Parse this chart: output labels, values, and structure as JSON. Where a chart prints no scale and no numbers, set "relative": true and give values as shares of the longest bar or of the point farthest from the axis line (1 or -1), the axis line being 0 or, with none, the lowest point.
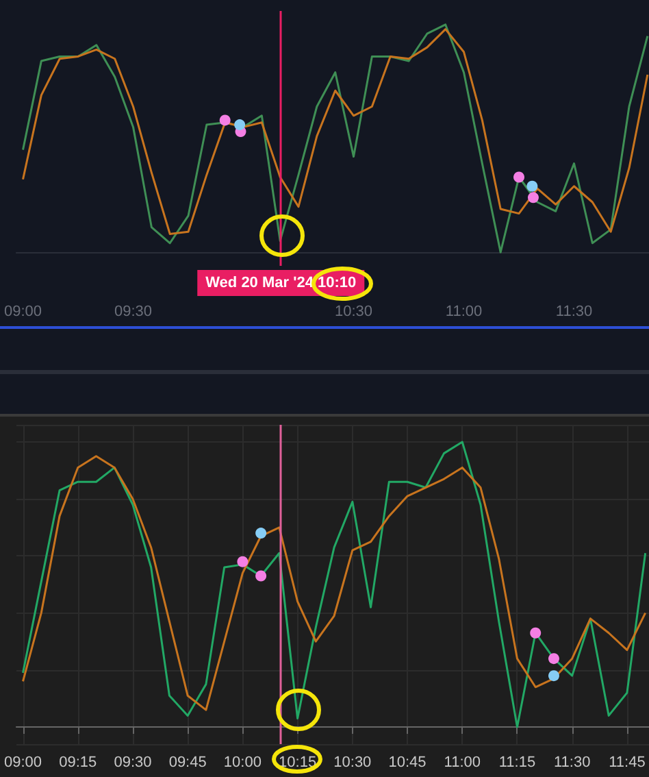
{
  "chart_data": [
    {
      "type": "line",
      "relative": true,
      "tick_labels": "x",
      "grid": false,
      "marker": "none",
      "line_style": "solid",
      "xlim": [
        8.97,
        11.84
      ],
      "xticks": [
        {
          "value": 9,
          "label": "09:00"
        },
        {
          "value": 9.5,
          "label": "09:30"
        },
        {
          "value": 10.5,
          "label": "10:30"
        },
        {
          "value": 11,
          "label": "11:00"
        },
        {
          "value": 11.5,
          "label": "11:30"
        }
      ],
      "x": [
        9,
        9.0833,
        9.1667,
        9.25,
        9.3333,
        9.4167,
        9.5,
        9.5833,
        9.6667,
        9.75,
        9.8333,
        9.9167,
        10,
        10.0833,
        10.1667,
        10.25,
        10.3333,
        10.4167,
        10.5,
        10.5833,
        10.6667,
        10.75,
        10.8333,
        10.9167,
        11,
        11.0833,
        11.1667,
        11.25,
        11.3333,
        11.4167,
        11.5,
        11.5833,
        11.6667,
        11.75,
        11.8333
      ],
      "series": [
        {
          "color": "#3f8f55",
          "values": [
            0.45,
            0.84,
            0.86,
            0.86,
            0.91,
            0.77,
            0.55,
            0.11,
            0.04,
            0.16,
            0.56,
            0.57,
            0.55,
            0.6,
            0.05,
            0.34,
            0.64,
            0.79,
            0.42,
            0.86,
            0.86,
            0.84,
            0.96,
            1.0,
            0.79,
            0.39,
            0.0,
            0.33,
            0.22,
            0.18,
            0.39,
            0.04,
            0.1,
            0.64,
            0.95
          ]
        },
        {
          "color": "#c8741e",
          "values": [
            0.32,
            0.69,
            0.85,
            0.86,
            0.89,
            0.85,
            0.64,
            0.35,
            0.08,
            0.09,
            0.34,
            0.57,
            0.55,
            0.57,
            0.33,
            0.2,
            0.51,
            0.71,
            0.6,
            0.64,
            0.86,
            0.85,
            0.9,
            0.98,
            0.88,
            0.58,
            0.19,
            0.17,
            0.28,
            0.21,
            0.29,
            0.22,
            0.09,
            0.37,
            0.78
          ]
        },
        {
          "type": "scatter",
          "marker": "circle",
          "color": "#f47fe4",
          "x": [
            9.9167,
            9.9875,
            11.25,
            11.315
          ],
          "values": [
            0.58,
            0.53,
            0.33,
            0.24
          ]
        },
        {
          "type": "scatter",
          "marker": "circle",
          "color": "#86cdf5",
          "x": [
            9.9833,
            11.31
          ],
          "values": [
            0.56,
            0.29
          ]
        }
      ],
      "ref_lines": [
        {
          "axis": "x",
          "value": 10.1667,
          "label": "Wed 20 Mar '24 10:10",
          "color": "#e91e63"
        }
      ]
    },
    {
      "type": "line",
      "relative": true,
      "tick_labels": "x",
      "grid": true,
      "marker": "none",
      "line_style": "solid",
      "xlim": [
        8.97,
        11.85
      ],
      "xticks": [
        {
          "value": 9,
          "label": "09:00"
        },
        {
          "value": 9.25,
          "label": "09:15"
        },
        {
          "value": 9.5,
          "label": "09:30"
        },
        {
          "value": 9.75,
          "label": "09:45"
        },
        {
          "value": 10,
          "label": "10:00"
        },
        {
          "value": 10.25,
          "label": "10:15"
        },
        {
          "value": 10.5,
          "label": "10:30"
        },
        {
          "value": 10.75,
          "label": "10:45"
        },
        {
          "value": 11,
          "label": "11:00"
        },
        {
          "value": 11.25,
          "label": "11:15"
        },
        {
          "value": 11.5,
          "label": "11:30"
        },
        {
          "value": 11.75,
          "label": "11:45"
        }
      ],
      "x": [
        9,
        9.0833,
        9.1667,
        9.25,
        9.3333,
        9.4167,
        9.5,
        9.5833,
        9.6667,
        9.75,
        9.8333,
        9.9167,
        10,
        10.0833,
        10.1667,
        10.25,
        10.3333,
        10.4167,
        10.5,
        10.5833,
        10.6667,
        10.75,
        10.8333,
        10.9167,
        11,
        11.0833,
        11.1667,
        11.25,
        11.3333,
        11.4167,
        11.5,
        11.5833,
        11.6667,
        11.75,
        11.8333
      ],
      "series": [
        {
          "color": "#22a865",
          "values": [
            0.19,
            0.51,
            0.83,
            0.86,
            0.86,
            0.91,
            0.78,
            0.56,
            0.11,
            0.04,
            0.15,
            0.56,
            0.57,
            0.53,
            0.61,
            0.03,
            0.35,
            0.63,
            0.79,
            0.42,
            0.86,
            0.86,
            0.84,
            0.96,
            1.0,
            0.78,
            0.37,
            0.0,
            0.33,
            0.24,
            0.18,
            0.38,
            0.04,
            0.12,
            0.61
          ]
        },
        {
          "color": "#c8741e",
          "values": [
            0.16,
            0.4,
            0.74,
            0.91,
            0.95,
            0.91,
            0.8,
            0.63,
            0.37,
            0.11,
            0.06,
            0.3,
            0.54,
            0.67,
            0.7,
            0.44,
            0.3,
            0.39,
            0.62,
            0.65,
            0.74,
            0.81,
            0.84,
            0.87,
            0.91,
            0.84,
            0.59,
            0.24,
            0.14,
            0.17,
            0.24,
            0.38,
            0.33,
            0.27,
            0.4
          ]
        },
        {
          "type": "scatter",
          "marker": "circle",
          "color": "#f47fe4",
          "x": [
            10,
            10.0833,
            11.3333,
            11.4167
          ],
          "values": [
            0.58,
            0.53,
            0.33,
            0.24
          ]
        },
        {
          "type": "scatter",
          "marker": "circle",
          "color": "#86cdf5",
          "x": [
            10.0833,
            11.4167
          ],
          "values": [
            0.68,
            0.18
          ]
        }
      ],
      "ref_lines": [
        {
          "axis": "x",
          "value": 10.1667,
          "color": "#e0609a"
        }
      ]
    }
  ]
}
